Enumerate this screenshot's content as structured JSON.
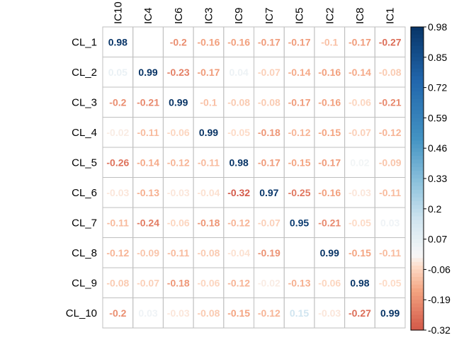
{
  "chart_data": {
    "type": "heatmap",
    "rows": [
      "CL_1",
      "CL_2",
      "CL_3",
      "CL_4",
      "CL_5",
      "CL_6",
      "CL_7",
      "CL_8",
      "CL_9",
      "CL_10"
    ],
    "columns": [
      "IC10",
      "IC4",
      "IC6",
      "IC3",
      "IC9",
      "IC7",
      "IC5",
      "IC2",
      "IC8",
      "IC1"
    ],
    "values": [
      [
        0.98,
        0.0,
        -0.2,
        -0.16,
        -0.16,
        -0.17,
        -0.17,
        -0.1,
        -0.17,
        -0.27
      ],
      [
        0.05,
        0.99,
        -0.23,
        -0.17,
        0.04,
        -0.07,
        -0.14,
        -0.16,
        -0.14,
        -0.08
      ],
      [
        -0.2,
        -0.21,
        0.99,
        -0.1,
        -0.08,
        -0.08,
        -0.17,
        -0.16,
        -0.06,
        -0.21
      ],
      [
        -0.02,
        -0.11,
        -0.06,
        0.99,
        -0.05,
        -0.18,
        -0.12,
        -0.15,
        -0.07,
        -0.12
      ],
      [
        -0.26,
        -0.14,
        -0.12,
        -0.11,
        0.98,
        -0.17,
        -0.15,
        -0.17,
        0.02,
        -0.09
      ],
      [
        -0.03,
        -0.13,
        -0.03,
        -0.04,
        -0.32,
        0.97,
        -0.25,
        -0.16,
        -0.03,
        -0.11
      ],
      [
        -0.11,
        -0.24,
        -0.06,
        -0.18,
        -0.12,
        -0.07,
        0.95,
        -0.21,
        -0.05,
        0.03
      ],
      [
        -0.12,
        -0.09,
        -0.11,
        -0.08,
        -0.04,
        -0.19,
        0.0,
        0.99,
        -0.15,
        -0.11
      ],
      [
        -0.08,
        -0.07,
        -0.18,
        -0.06,
        -0.12,
        -0.02,
        -0.13,
        -0.06,
        0.98,
        -0.05
      ],
      [
        -0.2,
        0.03,
        -0.03,
        -0.08,
        -0.15,
        -0.12,
        0.15,
        -0.03,
        -0.27,
        0.99
      ]
    ],
    "labels": [
      [
        "0.98",
        "",
        "-0.2",
        "-0.16",
        "-0.16",
        "-0.17",
        "-0.17",
        "-0.1",
        "-0.17",
        "-0.27"
      ],
      [
        "0.05",
        "0.99",
        "-0.23",
        "-0.17",
        "0.04",
        "-0.07",
        "-0.14",
        "-0.16",
        "-0.14",
        "-0.08"
      ],
      [
        "-0.2",
        "-0.21",
        "0.99",
        "-0.1",
        "-0.08",
        "-0.08",
        "-0.17",
        "-0.16",
        "-0.06",
        "-0.21"
      ],
      [
        "-0.02",
        "-0.11",
        "-0.06",
        "0.99",
        "-0.05",
        "-0.18",
        "-0.12",
        "-0.15",
        "-0.07",
        "-0.12"
      ],
      [
        "-0.26",
        "-0.14",
        "-0.12",
        "-0.11",
        "0.98",
        "-0.17",
        "-0.15",
        "-0.17",
        "0.02",
        "-0.09"
      ],
      [
        "-0.03",
        "-0.13",
        "-0.03",
        "-0.04",
        "-0.32",
        "0.97",
        "-0.25",
        "-0.16",
        "-0.03",
        "-0.11"
      ],
      [
        "-0.11",
        "-0.24",
        "-0.06",
        "-0.18",
        "-0.12",
        "-0.07",
        "0.95",
        "-0.21",
        "-0.05",
        "0.03"
      ],
      [
        "-0.12",
        "-0.09",
        "-0.11",
        "-0.08",
        "-0.04",
        "-0.19",
        "",
        "0.99",
        "-0.15",
        "-0.11"
      ],
      [
        "-0.08",
        "-0.07",
        "-0.18",
        "-0.06",
        "-0.12",
        "-0.02",
        "-0.13",
        "-0.06",
        "0.98",
        "-0.05"
      ],
      [
        "-0.2",
        "0.03",
        "-0.03",
        "-0.08",
        "-0.15",
        "-0.12",
        "0.15",
        "-0.03",
        "-0.27",
        "0.99"
      ]
    ],
    "colorbar": {
      "min": -0.32,
      "max": 0.98,
      "ticks": [
        "0.98",
        "0.85",
        "0.72",
        "0.59",
        "0.46",
        "0.33",
        "0.2",
        "0.07",
        "-0.06",
        "-0.19",
        "-0.32"
      ],
      "legend_position": "right"
    },
    "colors": {
      "strong_negative": "#67001F",
      "negative": "#D6604D",
      "light_negative": "#FDDBC7",
      "neutral": "#F7F7F7",
      "light_positive": "#D1E5F0",
      "positive": "#4393C3",
      "strong_positive": "#053061"
    },
    "grid": true
  }
}
